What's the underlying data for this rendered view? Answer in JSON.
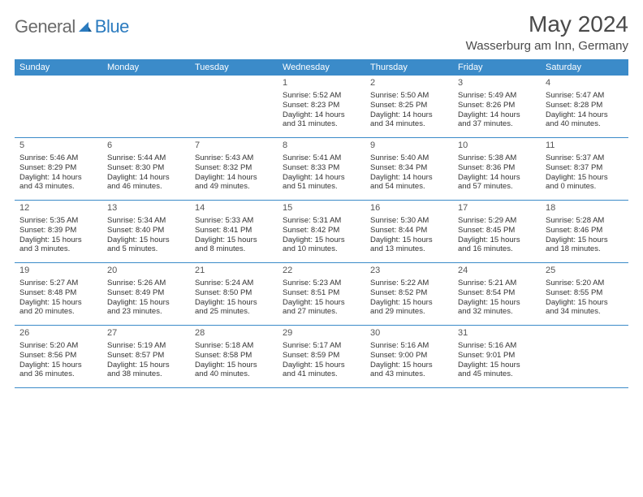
{
  "brand": {
    "part1": "General",
    "part2": "Blue"
  },
  "title": "May 2024",
  "location": "Wasserburg am Inn, Germany",
  "colors": {
    "header_bg": "#3b8bc9",
    "border": "#3b8bc9",
    "text": "#333333",
    "title_text": "#4a4a4a",
    "logo_gray": "#6b6b6b",
    "logo_blue": "#2b7bbf",
    "background": "#ffffff"
  },
  "day_names": [
    "Sunday",
    "Monday",
    "Tuesday",
    "Wednesday",
    "Thursday",
    "Friday",
    "Saturday"
  ],
  "weeks": [
    [
      null,
      null,
      null,
      {
        "n": "1",
        "sr": "Sunrise: 5:52 AM",
        "ss": "Sunset: 8:23 PM",
        "d1": "Daylight: 14 hours",
        "d2": "and 31 minutes."
      },
      {
        "n": "2",
        "sr": "Sunrise: 5:50 AM",
        "ss": "Sunset: 8:25 PM",
        "d1": "Daylight: 14 hours",
        "d2": "and 34 minutes."
      },
      {
        "n": "3",
        "sr": "Sunrise: 5:49 AM",
        "ss": "Sunset: 8:26 PM",
        "d1": "Daylight: 14 hours",
        "d2": "and 37 minutes."
      },
      {
        "n": "4",
        "sr": "Sunrise: 5:47 AM",
        "ss": "Sunset: 8:28 PM",
        "d1": "Daylight: 14 hours",
        "d2": "and 40 minutes."
      }
    ],
    [
      {
        "n": "5",
        "sr": "Sunrise: 5:46 AM",
        "ss": "Sunset: 8:29 PM",
        "d1": "Daylight: 14 hours",
        "d2": "and 43 minutes."
      },
      {
        "n": "6",
        "sr": "Sunrise: 5:44 AM",
        "ss": "Sunset: 8:30 PM",
        "d1": "Daylight: 14 hours",
        "d2": "and 46 minutes."
      },
      {
        "n": "7",
        "sr": "Sunrise: 5:43 AM",
        "ss": "Sunset: 8:32 PM",
        "d1": "Daylight: 14 hours",
        "d2": "and 49 minutes."
      },
      {
        "n": "8",
        "sr": "Sunrise: 5:41 AM",
        "ss": "Sunset: 8:33 PM",
        "d1": "Daylight: 14 hours",
        "d2": "and 51 minutes."
      },
      {
        "n": "9",
        "sr": "Sunrise: 5:40 AM",
        "ss": "Sunset: 8:34 PM",
        "d1": "Daylight: 14 hours",
        "d2": "and 54 minutes."
      },
      {
        "n": "10",
        "sr": "Sunrise: 5:38 AM",
        "ss": "Sunset: 8:36 PM",
        "d1": "Daylight: 14 hours",
        "d2": "and 57 minutes."
      },
      {
        "n": "11",
        "sr": "Sunrise: 5:37 AM",
        "ss": "Sunset: 8:37 PM",
        "d1": "Daylight: 15 hours",
        "d2": "and 0 minutes."
      }
    ],
    [
      {
        "n": "12",
        "sr": "Sunrise: 5:35 AM",
        "ss": "Sunset: 8:39 PM",
        "d1": "Daylight: 15 hours",
        "d2": "and 3 minutes."
      },
      {
        "n": "13",
        "sr": "Sunrise: 5:34 AM",
        "ss": "Sunset: 8:40 PM",
        "d1": "Daylight: 15 hours",
        "d2": "and 5 minutes."
      },
      {
        "n": "14",
        "sr": "Sunrise: 5:33 AM",
        "ss": "Sunset: 8:41 PM",
        "d1": "Daylight: 15 hours",
        "d2": "and 8 minutes."
      },
      {
        "n": "15",
        "sr": "Sunrise: 5:31 AM",
        "ss": "Sunset: 8:42 PM",
        "d1": "Daylight: 15 hours",
        "d2": "and 10 minutes."
      },
      {
        "n": "16",
        "sr": "Sunrise: 5:30 AM",
        "ss": "Sunset: 8:44 PM",
        "d1": "Daylight: 15 hours",
        "d2": "and 13 minutes."
      },
      {
        "n": "17",
        "sr": "Sunrise: 5:29 AM",
        "ss": "Sunset: 8:45 PM",
        "d1": "Daylight: 15 hours",
        "d2": "and 16 minutes."
      },
      {
        "n": "18",
        "sr": "Sunrise: 5:28 AM",
        "ss": "Sunset: 8:46 PM",
        "d1": "Daylight: 15 hours",
        "d2": "and 18 minutes."
      }
    ],
    [
      {
        "n": "19",
        "sr": "Sunrise: 5:27 AM",
        "ss": "Sunset: 8:48 PM",
        "d1": "Daylight: 15 hours",
        "d2": "and 20 minutes."
      },
      {
        "n": "20",
        "sr": "Sunrise: 5:26 AM",
        "ss": "Sunset: 8:49 PM",
        "d1": "Daylight: 15 hours",
        "d2": "and 23 minutes."
      },
      {
        "n": "21",
        "sr": "Sunrise: 5:24 AM",
        "ss": "Sunset: 8:50 PM",
        "d1": "Daylight: 15 hours",
        "d2": "and 25 minutes."
      },
      {
        "n": "22",
        "sr": "Sunrise: 5:23 AM",
        "ss": "Sunset: 8:51 PM",
        "d1": "Daylight: 15 hours",
        "d2": "and 27 minutes."
      },
      {
        "n": "23",
        "sr": "Sunrise: 5:22 AM",
        "ss": "Sunset: 8:52 PM",
        "d1": "Daylight: 15 hours",
        "d2": "and 29 minutes."
      },
      {
        "n": "24",
        "sr": "Sunrise: 5:21 AM",
        "ss": "Sunset: 8:54 PM",
        "d1": "Daylight: 15 hours",
        "d2": "and 32 minutes."
      },
      {
        "n": "25",
        "sr": "Sunrise: 5:20 AM",
        "ss": "Sunset: 8:55 PM",
        "d1": "Daylight: 15 hours",
        "d2": "and 34 minutes."
      }
    ],
    [
      {
        "n": "26",
        "sr": "Sunrise: 5:20 AM",
        "ss": "Sunset: 8:56 PM",
        "d1": "Daylight: 15 hours",
        "d2": "and 36 minutes."
      },
      {
        "n": "27",
        "sr": "Sunrise: 5:19 AM",
        "ss": "Sunset: 8:57 PM",
        "d1": "Daylight: 15 hours",
        "d2": "and 38 minutes."
      },
      {
        "n": "28",
        "sr": "Sunrise: 5:18 AM",
        "ss": "Sunset: 8:58 PM",
        "d1": "Daylight: 15 hours",
        "d2": "and 40 minutes."
      },
      {
        "n": "29",
        "sr": "Sunrise: 5:17 AM",
        "ss": "Sunset: 8:59 PM",
        "d1": "Daylight: 15 hours",
        "d2": "and 41 minutes."
      },
      {
        "n": "30",
        "sr": "Sunrise: 5:16 AM",
        "ss": "Sunset: 9:00 PM",
        "d1": "Daylight: 15 hours",
        "d2": "and 43 minutes."
      },
      {
        "n": "31",
        "sr": "Sunrise: 5:16 AM",
        "ss": "Sunset: 9:01 PM",
        "d1": "Daylight: 15 hours",
        "d2": "and 45 minutes."
      },
      null
    ]
  ]
}
